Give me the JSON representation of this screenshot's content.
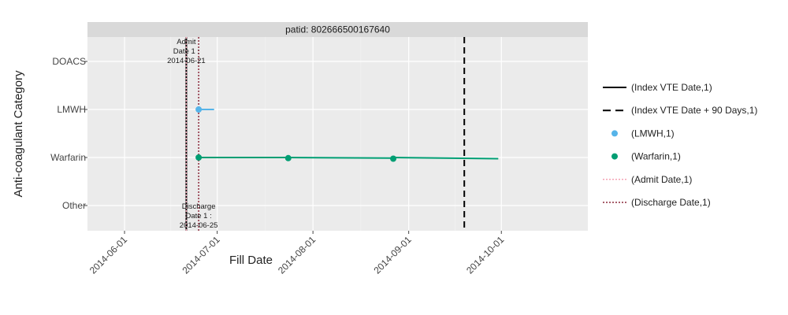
{
  "chart_data": {
    "type": "line",
    "title": "",
    "facet_label": "patid: 802666500167640",
    "xlabel": "Fill Date",
    "ylabel": "Anti-coagulant Category",
    "x_range": [
      "2014-05-20",
      "2014-10-29"
    ],
    "x_ticks": [
      "2014-06-01",
      "2014-07-01",
      "2014-08-01",
      "2014-09-01",
      "2014-10-01"
    ],
    "categories": [
      "DOACS",
      "LMWH",
      "Warfarin",
      "Other"
    ],
    "grid": true,
    "legend_position": "right",
    "series": [
      {
        "name": "(Index VTE Date,1)",
        "kind": "vline",
        "style": "solid",
        "color": "#000000",
        "x": "2014-06-21"
      },
      {
        "name": "(Index VTE Date + 90 Days,1)",
        "kind": "vline",
        "style": "dash",
        "color": "#000000",
        "x": "2014-09-19"
      },
      {
        "name": "(LMWH,1)",
        "kind": "points",
        "color": "#56b4e9",
        "category": "LMWH",
        "points": [
          {
            "x": "2014-06-25",
            "x_end": "2014-06-30"
          }
        ]
      },
      {
        "name": "(Warfarin,1)",
        "kind": "points",
        "color": "#009e73",
        "category": "Warfarin",
        "points": [
          {
            "x": "2014-06-25",
            "x_end": "2014-07-24"
          },
          {
            "x": "2014-07-24",
            "x_end": "2014-08-27"
          },
          {
            "x": "2014-08-27",
            "x_end": "2014-09-30"
          }
        ]
      },
      {
        "name": "(Admit Date,1)",
        "kind": "vline",
        "style": "dot",
        "color": "#f4a3b4",
        "x": "2014-06-21"
      },
      {
        "name": "(Discharge Date,1)",
        "kind": "vline",
        "style": "dot",
        "color": "#8b2a3c",
        "x": "2014-06-25"
      }
    ],
    "annotations": [
      {
        "text_lines": [
          "Admit",
          "Date 1 :",
          "2014-06-21"
        ],
        "x": "2014-06-21",
        "position": "top"
      },
      {
        "text_lines": [
          "Discharge",
          "Date 1 :",
          "2014-06-25"
        ],
        "x": "2014-06-25",
        "position": "bottom"
      }
    ]
  }
}
